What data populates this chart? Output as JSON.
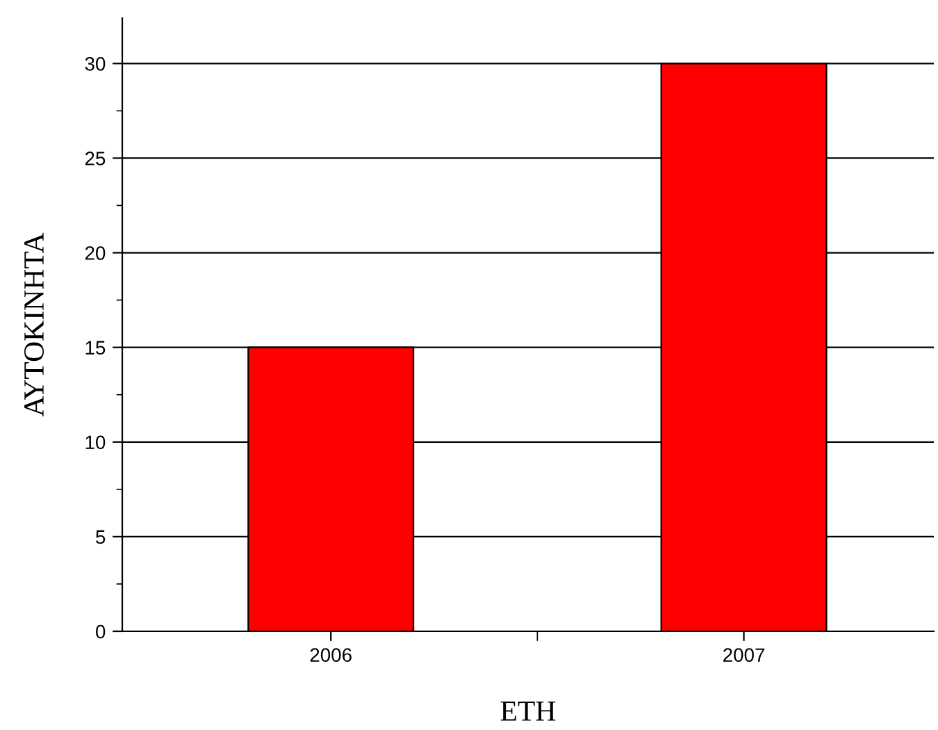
{
  "chart_data": {
    "type": "bar",
    "categories": [
      "2006",
      "2007"
    ],
    "values": [
      15,
      30
    ],
    "color": "#ff0000",
    "xlabel": "ΕΤΗ",
    "ylabel": "ΑΥΤΟΚΙΝΗΤΑ",
    "ylim": [
      0,
      32.4
    ],
    "yticks": [
      0,
      5,
      10,
      15,
      20,
      25,
      30
    ],
    "grid": "y"
  }
}
